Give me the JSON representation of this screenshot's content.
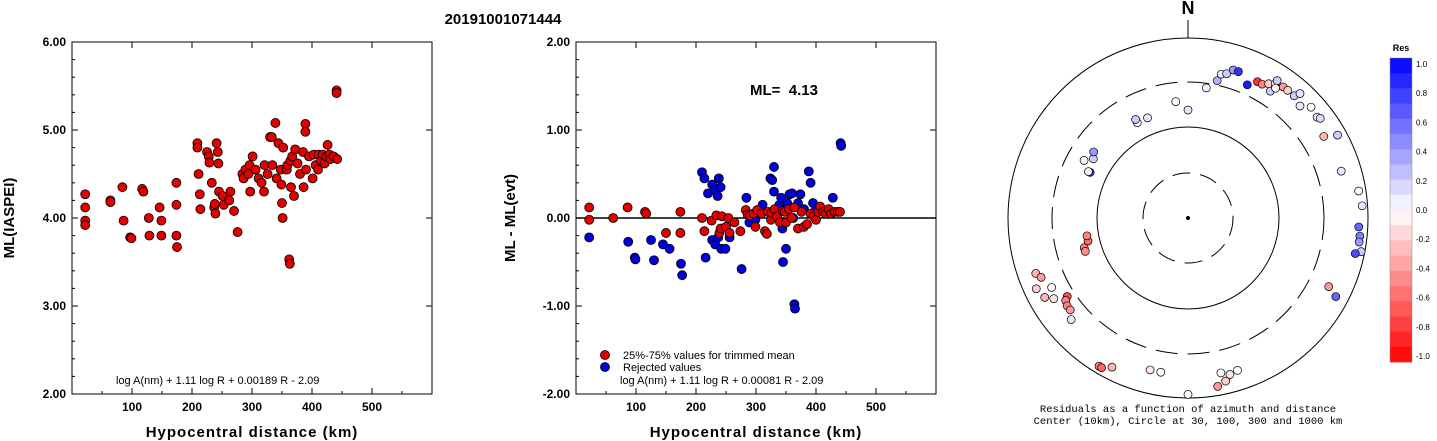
{
  "event_id": "20191001071444",
  "colors": {
    "accepted": "#e00000",
    "rejected": "#0000dd"
  },
  "chart_data": [
    {
      "type": "scatter",
      "ylabel": "ML(IASPEI)",
      "xlabel": "Hypocentral distance (km)",
      "xlim": [
        0,
        600
      ],
      "ylim": [
        2.0,
        6.0
      ],
      "xticks": [
        "100",
        "200",
        "300",
        "400",
        "500"
      ],
      "yticks": [
        "2.00",
        "3.00",
        "4.00",
        "5.00",
        "6.00"
      ],
      "formula": "log A(nm) + 1.11 log R + 0.00189 R - 2.09",
      "points": [
        [
          22,
          4.27
        ],
        [
          22,
          4.12
        ],
        [
          22,
          3.97
        ],
        [
          22,
          3.92
        ],
        [
          64,
          4.2
        ],
        [
          64,
          4.18
        ],
        [
          84,
          4.35
        ],
        [
          86,
          3.97
        ],
        [
          97,
          3.78
        ],
        [
          99,
          3.77
        ],
        [
          117,
          4.33
        ],
        [
          119,
          4.3
        ],
        [
          128,
          4.0
        ],
        [
          129,
          3.8
        ],
        [
          146,
          4.12
        ],
        [
          149,
          3.97
        ],
        [
          149,
          3.8
        ],
        [
          174,
          4.4
        ],
        [
          174,
          4.15
        ],
        [
          174,
          3.8
        ],
        [
          175,
          3.67
        ],
        [
          209,
          4.85
        ],
        [
          209,
          4.8
        ],
        [
          211,
          4.5
        ],
        [
          213,
          4.27
        ],
        [
          214,
          4.1
        ],
        [
          225,
          4.75
        ],
        [
          228,
          4.7
        ],
        [
          229,
          4.63
        ],
        [
          233,
          4.4
        ],
        [
          237,
          4.12
        ],
        [
          238,
          4.16
        ],
        [
          239,
          4.05
        ],
        [
          241,
          4.85
        ],
        [
          243,
          4.75
        ],
        [
          244,
          4.62
        ],
        [
          245,
          4.3
        ],
        [
          251,
          4.25
        ],
        [
          253,
          4.15
        ],
        [
          262,
          4.2
        ],
        [
          264,
          4.3
        ],
        [
          270,
          4.08
        ],
        [
          276,
          3.84
        ],
        [
          284,
          4.5
        ],
        [
          286,
          4.45
        ],
        [
          289,
          4.55
        ],
        [
          294,
          4.5
        ],
        [
          296,
          4.6
        ],
        [
          297,
          4.3
        ],
        [
          301,
          4.7
        ],
        [
          306,
          4.55
        ],
        [
          311,
          4.45
        ],
        [
          316,
          4.4
        ],
        [
          320,
          4.3
        ],
        [
          321,
          4.6
        ],
        [
          326,
          4.5
        ],
        [
          330,
          4.92
        ],
        [
          333,
          4.92
        ],
        [
          334,
          4.6
        ],
        [
          339,
          5.08
        ],
        [
          341,
          4.45
        ],
        [
          344,
          4.85
        ],
        [
          348,
          4.55
        ],
        [
          349,
          4.38
        ],
        [
          350,
          4.17
        ],
        [
          351,
          4.0
        ],
        [
          352,
          4.8
        ],
        [
          358,
          4.55
        ],
        [
          359,
          4.6
        ],
        [
          362,
          3.53
        ],
        [
          363,
          3.48
        ],
        [
          364,
          4.65
        ],
        [
          365,
          4.35
        ],
        [
          367,
          4.7
        ],
        [
          370,
          4.25
        ],
        [
          372,
          4.78
        ],
        [
          376,
          4.62
        ],
        [
          380,
          4.5
        ],
        [
          385,
          4.75
        ],
        [
          386,
          4.35
        ],
        [
          389,
          5.07
        ],
        [
          389,
          4.98
        ],
        [
          390,
          4.55
        ],
        [
          395,
          4.7
        ],
        [
          401,
          4.45
        ],
        [
          403,
          4.72
        ],
        [
          406,
          4.6
        ],
        [
          410,
          4.55
        ],
        [
          411,
          4.72
        ],
        [
          415,
          4.65
        ],
        [
          418,
          4.72
        ],
        [
          421,
          4.62
        ],
        [
          424,
          4.7
        ],
        [
          426,
          4.83
        ],
        [
          429,
          4.72
        ],
        [
          431,
          4.67
        ],
        [
          436,
          4.7
        ],
        [
          441,
          5.45
        ],
        [
          441,
          5.42
        ],
        [
          442,
          4.67
        ]
      ]
    },
    {
      "type": "scatter",
      "ylabel": "ML - ML(evt)",
      "xlabel": "Hypocentral distance (km)",
      "xlim": [
        0,
        600
      ],
      "ylim": [
        -2.0,
        2.0
      ],
      "xticks": [
        "100",
        "200",
        "300",
        "400",
        "500"
      ],
      "yticks": [
        "-2.00",
        "-1.00",
        "0.00",
        "1.00",
        "2.00"
      ],
      "annotation": "ML=  4.13",
      "formula": "log A(nm) + 1.11 log R + 0.00081 R - 2.09",
      "legend": [
        "25%-75% values for trimmed mean",
        "Rejected values"
      ],
      "accepted": [
        [
          22,
          0.12
        ],
        [
          22,
          -0.02
        ],
        [
          62,
          0.0
        ],
        [
          86,
          0.12
        ],
        [
          115,
          0.07
        ],
        [
          117,
          0.05
        ],
        [
          150,
          -0.17
        ],
        [
          174,
          0.07
        ],
        [
          174,
          -0.17
        ],
        [
          210,
          0.0
        ],
        [
          214,
          -0.15
        ],
        [
          226,
          -0.03
        ],
        [
          234,
          0.03
        ],
        [
          239,
          -0.17
        ],
        [
          241,
          -0.12
        ],
        [
          243,
          0.02
        ],
        [
          250,
          -0.1
        ],
        [
          254,
          0.0
        ],
        [
          256,
          -0.17
        ],
        [
          264,
          -0.05
        ],
        [
          274,
          -0.15
        ],
        [
          283,
          0.09
        ],
        [
          286,
          0.04
        ],
        [
          290,
          0.03
        ],
        [
          296,
          0.05
        ],
        [
          299,
          -0.1
        ],
        [
          302,
          0.09
        ],
        [
          309,
          0.05
        ],
        [
          315,
          -0.15
        ],
        [
          318,
          -0.18
        ],
        [
          320,
          0.07
        ],
        [
          325,
          -0.02
        ],
        [
          326,
          0.06
        ],
        [
          331,
          0.1
        ],
        [
          335,
          0.02
        ],
        [
          340,
          -0.05
        ],
        [
          345,
          0.08
        ],
        [
          348,
          0.07
        ],
        [
          350,
          -0.05
        ],
        [
          355,
          0.1
        ],
        [
          359,
          0.0
        ],
        [
          364,
          0.12
        ],
        [
          370,
          -0.12
        ],
        [
          376,
          0.07
        ],
        [
          380,
          -0.1
        ],
        [
          385,
          -0.07
        ],
        [
          391,
          0.05
        ],
        [
          396,
          0.02
        ],
        [
          400,
          -0.02
        ],
        [
          404,
          0.07
        ],
        [
          407,
          0.13
        ],
        [
          412,
          0.07
        ],
        [
          416,
          0.05
        ],
        [
          421,
          0.1
        ],
        [
          425,
          0.05
        ],
        [
          431,
          0.07
        ],
        [
          436,
          0.07
        ],
        [
          440,
          0.07
        ]
      ],
      "rejected": [
        [
          22,
          -0.22
        ],
        [
          87,
          -0.27
        ],
        [
          98,
          -0.45
        ],
        [
          99,
          -0.47
        ],
        [
          125,
          -0.25
        ],
        [
          130,
          -0.48
        ],
        [
          145,
          -0.3
        ],
        [
          156,
          -0.35
        ],
        [
          175,
          -0.52
        ],
        [
          177,
          -0.65
        ],
        [
          210,
          0.52
        ],
        [
          214,
          0.45
        ],
        [
          220,
          0.28
        ],
        [
          227,
          0.38
        ],
        [
          231,
          0.32
        ],
        [
          236,
          0.25
        ],
        [
          238,
          0.45
        ],
        [
          241,
          0.35
        ],
        [
          216,
          -0.45
        ],
        [
          227,
          -0.25
        ],
        [
          232,
          -0.3
        ],
        [
          237,
          -0.22
        ],
        [
          242,
          -0.35
        ],
        [
          249,
          -0.35
        ],
        [
          256,
          -0.22
        ],
        [
          276,
          -0.58
        ],
        [
          284,
          0.23
        ],
        [
          289,
          -0.05
        ],
        [
          299,
          -0.02
        ],
        [
          311,
          0.15
        ],
        [
          324,
          0.45
        ],
        [
          327,
          0.43
        ],
        [
          330,
          0.58
        ],
        [
          330,
          0.3
        ],
        [
          339,
          0.15
        ],
        [
          342,
          0.23
        ],
        [
          344,
          -0.12
        ],
        [
          345,
          -0.5
        ],
        [
          350,
          -0.35
        ],
        [
          352,
          0.17
        ],
        [
          356,
          0.27
        ],
        [
          360,
          0.28
        ],
        [
          362,
          0.0
        ],
        [
          364,
          -0.98
        ],
        [
          365,
          -1.03
        ],
        [
          370,
          0.17
        ],
        [
          374,
          0.27
        ],
        [
          380,
          0.1
        ],
        [
          388,
          0.53
        ],
        [
          391,
          0.4
        ],
        [
          395,
          0.17
        ],
        [
          399,
          0.08
        ],
        [
          428,
          0.23
        ],
        [
          441,
          0.85
        ],
        [
          442,
          0.82
        ]
      ]
    },
    {
      "type": "scatter",
      "subtype": "polar",
      "north_label": "N",
      "caption_lines": [
        "Residuals as a function of azimuth and distance",
        "Center (10km), Circle at 30, 100, 300 and 1000 km"
      ],
      "colorbar": {
        "title": "Res",
        "ticks": [
          "1.0",
          "0.8",
          "0.6",
          "0.4",
          "0.2",
          "0.0",
          "-0.2",
          "-0.4",
          "-0.6",
          "-0.8",
          "-1.0"
        ],
        "range": [
          -1.0,
          1.0
        ]
      },
      "points": [
        [
          -65,
          0.6,
          0.8
        ],
        [
          -65,
          0.61,
          0.05
        ],
        [
          -58,
          0.62,
          0.2
        ],
        [
          -55,
          0.64,
          0.4
        ],
        [
          -61,
          0.66,
          0.05
        ],
        [
          -22,
          0.6,
          0.1
        ],
        [
          -28,
          0.6,
          0.0
        ],
        [
          -28,
          0.62,
          0.2
        ],
        [
          -6,
          0.65,
          0.0
        ],
        [
          0,
          0.6,
          0.1
        ],
        [
          8,
          0.73,
          0.05
        ],
        [
          12,
          0.78,
          0.3
        ],
        [
          13,
          0.82,
          0.1
        ],
        [
          15,
          0.83,
          0.2
        ],
        [
          17,
          0.86,
          0.4
        ],
        [
          19,
          0.86,
          0.8
        ],
        [
          24,
          0.81,
          0.9
        ],
        [
          27,
          0.85,
          -0.8
        ],
        [
          29,
          0.85,
          -0.5
        ],
        [
          31,
          0.87,
          -0.2
        ],
        [
          33,
          0.84,
          0.2
        ],
        [
          33,
          0.89,
          0.0
        ],
        [
          33,
          0.91,
          0.2
        ],
        [
          34,
          0.87,
          0.0
        ],
        [
          36,
          0.9,
          -0.4
        ],
        [
          38,
          0.9,
          -0.2
        ],
        [
          41,
          0.9,
          0.2
        ],
        [
          42,
          0.93,
          0.1
        ],
        [
          45,
          0.88,
          0.1
        ],
        [
          48,
          0.92,
          0.0
        ],
        [
          52,
          0.91,
          0.1
        ],
        [
          53,
          0.92,
          0.15
        ],
        [
          59,
          0.88,
          -0.3
        ],
        [
          61,
          0.95,
          0.2
        ],
        [
          73,
          0.89,
          0.1
        ],
        [
          81,
          0.96,
          0.0
        ],
        [
          86,
          0.97,
          0.1
        ],
        [
          93,
          0.95,
          0.6
        ],
        [
          96,
          0.96,
          0.5
        ],
        [
          98,
          0.96,
          0.4
        ],
        [
          101,
          0.98,
          0.2
        ],
        [
          102,
          0.95,
          0.7
        ],
        [
          116,
          0.87,
          -0.4
        ],
        [
          118,
          0.93,
          0.6
        ],
        [
          -106,
          0.6,
          -0.5
        ],
        [
          -108,
          0.6,
          -0.45
        ],
        [
          -103,
          0.57,
          -0.6
        ],
        [
          -100,
          0.57,
          -0.5
        ],
        [
          -110,
          0.9,
          -0.3
        ],
        [
          -112,
          0.88,
          -0.4
        ],
        [
          -115,
          0.93,
          -0.2
        ],
        [
          -117,
          0.85,
          0.0
        ],
        [
          -119,
          0.91,
          -0.3
        ],
        [
          -121,
          0.87,
          -0.1
        ],
        [
          -123,
          0.8,
          -0.7
        ],
        [
          -124,
          0.82,
          -0.5
        ],
        [
          -126,
          0.83,
          -0.5
        ],
        [
          -128,
          0.83,
          -0.4
        ],
        [
          -131,
          0.86,
          0.1
        ],
        [
          -149,
          0.96,
          -0.5
        ],
        [
          -150,
          0.96,
          -0.6
        ],
        [
          -166,
          0.87,
          -0.1
        ],
        [
          162,
          0.89,
          0.0
        ],
        [
          165,
          0.9,
          -0.1
        ],
        [
          168,
          0.88,
          0.0
        ],
        [
          167,
          0.93,
          -0.2
        ],
        [
          170,
          0.95,
          -0.4
        ],
        [
          180,
          0.98,
          0.0
        ],
        [
          -153,
          0.93,
          -0.3
        ],
        [
          -170,
          0.87,
          0.0
        ]
      ]
    }
  ]
}
